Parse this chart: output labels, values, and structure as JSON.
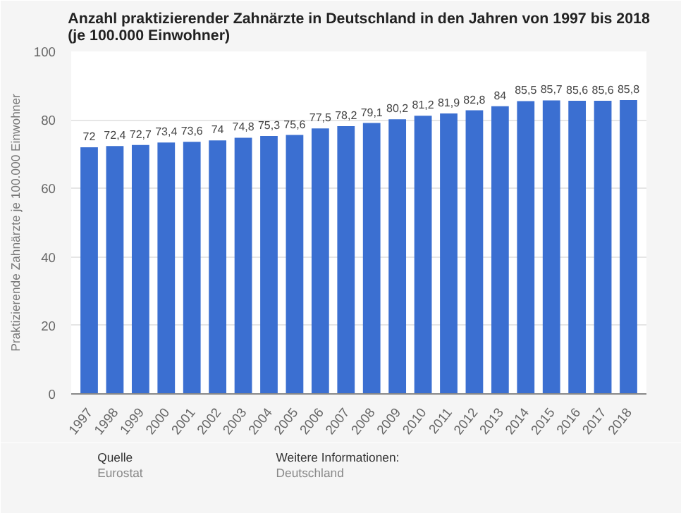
{
  "chart_data": {
    "type": "bar",
    "title": "Anzahl praktizierender Zahnärzte in Deutschland in den Jahren von 1997 bis 2018 (je 100.000 Einwohner)",
    "ylabel": "Praktizierende Zahnärzte je 100.000 Einwohner",
    "categories": [
      "1997",
      "1998",
      "1999",
      "2000",
      "2001",
      "2002",
      "2003",
      "2004",
      "2005",
      "2006",
      "2007",
      "2008",
      "2009",
      "2010",
      "2011",
      "2012",
      "2013",
      "2014",
      "2015",
      "2016",
      "2017",
      "2018"
    ],
    "values": [
      72,
      72.4,
      72.7,
      73.4,
      73.6,
      74,
      74.8,
      75.3,
      75.6,
      77.5,
      78.2,
      79.1,
      80.2,
      81.2,
      81.9,
      82.8,
      84,
      85.5,
      85.7,
      85.6,
      85.6,
      85.8
    ],
    "value_labels": [
      "72",
      "72,4",
      "72,7",
      "73,4",
      "73,6",
      "74",
      "74,8",
      "75,3",
      "75,6",
      "77,5",
      "78,2",
      "79,1",
      "80,2",
      "81,2",
      "81,9",
      "82,8",
      "84",
      "85,5",
      "85,7",
      "85,6",
      "85,6",
      "85,8"
    ],
    "color": "#3b6fd1",
    "ylim": [
      0,
      100
    ],
    "yticks": [
      0,
      20,
      40,
      60,
      80,
      100
    ],
    "grid": "y",
    "annotations": [
      "Quelle",
      "Eurostat",
      "Weitere Informationen:",
      "Deutschland"
    ]
  }
}
